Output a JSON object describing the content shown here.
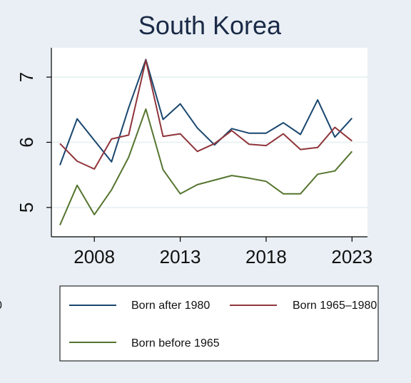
{
  "chart_data": {
    "type": "line",
    "title": "South Korea",
    "xlabel": "",
    "ylabel": "",
    "xlim": [
      2005.5,
      2023.9
    ],
    "ylim": [
      4.55,
      7.45
    ],
    "x_ticks": [
      2008,
      2013,
      2018,
      2023
    ],
    "y_ticks": [
      5,
      6,
      7
    ],
    "grid": true,
    "legend_position": "bottom",
    "x": [
      2006,
      2007,
      2008,
      2009,
      2010,
      2011,
      2012,
      2013,
      2014,
      2015,
      2016,
      2017,
      2018,
      2019,
      2020,
      2021,
      2022,
      2023
    ],
    "series": [
      {
        "name": "Born after 1980",
        "color": "#1a476f",
        "values": [
          5.65,
          6.36,
          6.03,
          5.7,
          6.53,
          7.27,
          6.35,
          6.59,
          6.22,
          5.96,
          6.21,
          6.14,
          6.14,
          6.3,
          6.12,
          6.65,
          6.08,
          6.37
        ]
      },
      {
        "name": "Born 1965–1980",
        "color": "#90353b",
        "values": [
          5.98,
          5.71,
          5.59,
          6.05,
          6.11,
          7.26,
          6.09,
          6.13,
          5.86,
          5.98,
          6.18,
          5.97,
          5.95,
          6.13,
          5.89,
          5.92,
          6.23,
          6.02
        ]
      },
      {
        "name": "Born before 1965",
        "color": "#55752f",
        "values": [
          4.73,
          5.34,
          4.89,
          5.27,
          5.77,
          6.51,
          5.58,
          5.21,
          5.35,
          5.42,
          5.49,
          5.45,
          5.4,
          5.21,
          5.21,
          5.51,
          5.56,
          5.86
        ]
      }
    ]
  },
  "stray_label": "0"
}
